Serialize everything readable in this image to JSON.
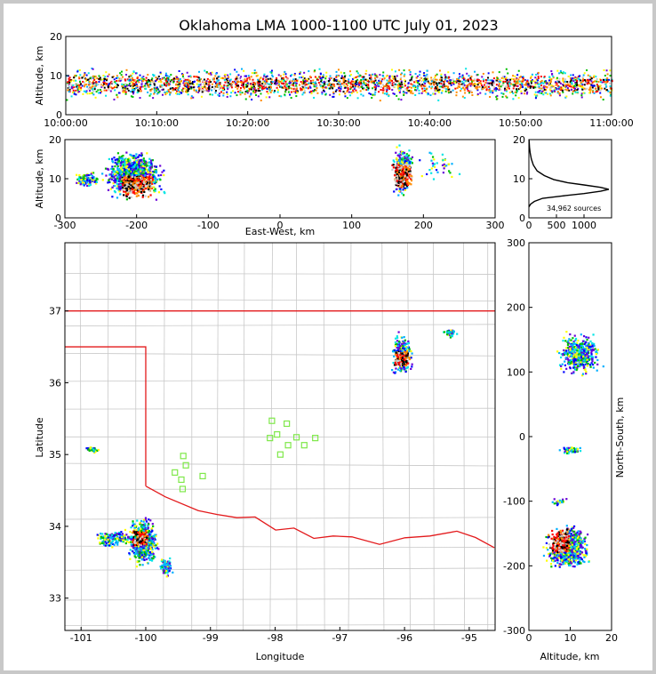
{
  "chart_data": [
    {
      "type": "heatmap",
      "id": "time-height",
      "title": "Oklahoma LMA 1000-1100 UTC July 01, 2023",
      "ylabel": "Altitude, km",
      "ylim": [
        0,
        20
      ],
      "yticks": [
        "0",
        "10",
        "20"
      ],
      "xticks": [
        "10:00:00",
        "10:10:00",
        "10:20:00",
        "10:30:00",
        "10:40:00",
        "10:50:00",
        "11:00:00"
      ],
      "xlim_minutes": [
        0,
        60
      ]
    },
    {
      "type": "heatmap",
      "id": "ew-altitude",
      "xlabel": "East-West, km",
      "ylabel": "Altitude, km",
      "xlim": [
        -300,
        300
      ],
      "ylim": [
        0,
        20
      ],
      "xticks": [
        "-300",
        "-200",
        "-100",
        "0",
        "100",
        "200",
        "300"
      ],
      "yticks": [
        "0",
        "10",
        "20"
      ]
    },
    {
      "type": "line",
      "id": "altitude-histogram",
      "annotation": "34,962 sources",
      "xlim": [
        0,
        1500
      ],
      "ylim": [
        0,
        20
      ],
      "xticks": [
        "0",
        "500",
        "1000"
      ],
      "yticks": [
        "0",
        "10",
        "20"
      ],
      "points": [
        [
          0,
          2.8
        ],
        [
          30,
          3.5
        ],
        [
          100,
          4.2
        ],
        [
          250,
          5.0
        ],
        [
          600,
          5.6
        ],
        [
          1000,
          6.2
        ],
        [
          1300,
          6.8
        ],
        [
          1450,
          7.3
        ],
        [
          1300,
          7.8
        ],
        [
          1000,
          8.4
        ],
        [
          700,
          9.0
        ],
        [
          450,
          9.8
        ],
        [
          280,
          10.8
        ],
        [
          150,
          12.0
        ],
        [
          80,
          13.5
        ],
        [
          45,
          15.0
        ],
        [
          25,
          16.5
        ],
        [
          12,
          18.0
        ],
        [
          5,
          19.5
        ],
        [
          2,
          20
        ]
      ]
    },
    {
      "type": "heatmap",
      "id": "plan-view-map",
      "xlabel": "Longitude",
      "ylabel": "Latitude",
      "xlim": [
        -101.25,
        -94.6
      ],
      "ylim": [
        32.55,
        37.95
      ],
      "xticks": [
        "-101",
        "-100",
        "-99",
        "-98",
        "-97",
        "-96",
        "-95"
      ],
      "yticks": [
        "33",
        "34",
        "35",
        "36",
        "37"
      ],
      "stations": [
        [
          -98.05,
          35.47
        ],
        [
          -97.82,
          35.43
        ],
        [
          -97.97,
          35.28
        ],
        [
          -98.08,
          35.23
        ],
        [
          -97.67,
          35.24
        ],
        [
          -97.8,
          35.13
        ],
        [
          -97.55,
          35.13
        ],
        [
          -97.38,
          35.23
        ],
        [
          -97.92,
          35.0
        ],
        [
          -99.42,
          34.98
        ],
        [
          -99.38,
          34.85
        ],
        [
          -99.55,
          34.75
        ],
        [
          -99.12,
          34.7
        ],
        [
          -99.45,
          34.65
        ],
        [
          -99.43,
          34.52
        ]
      ]
    },
    {
      "type": "heatmap",
      "id": "ns-altitude",
      "xlabel": "Altitude, km",
      "ylabel": "North-South, km",
      "xlim": [
        0,
        20
      ],
      "ylim": [
        -300,
        300
      ],
      "xticks": [
        "0",
        "10",
        "20"
      ],
      "yticks": [
        "-300",
        "-200",
        "-100",
        "0",
        "100",
        "200",
        "300"
      ]
    }
  ],
  "colors": {
    "state_border": "#e31a1c",
    "county_lines": "#c8c8c8",
    "stations": "#7fe84a",
    "histogram": "#000000"
  }
}
